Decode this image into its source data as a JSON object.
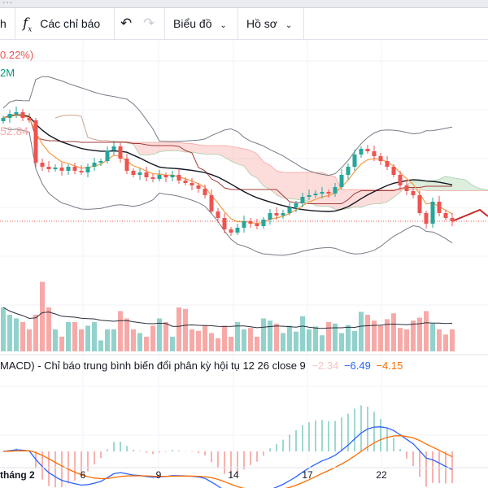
{
  "window_title": "…",
  "toolbar": {
    "partial_label": "h",
    "indicators_label": "Các chỉ báo",
    "chart_label": "Biểu đồ",
    "profile_label": "Hồ sơ"
  },
  "legend": {
    "change_text": "0.22%)",
    "volume_text": "2M",
    "ma_value": "52.84"
  },
  "macd_legend": {
    "title": "MACD) - Chỉ báo trung bình biến đổi phân kỳ hội tụ 12 26 close 9",
    "histogram": "−2.34",
    "macd": "−6.49",
    "signal": "−4.15"
  },
  "colors": {
    "up": "#26a69a",
    "down": "#ef5350",
    "macd": "#2962ff",
    "signal": "#ff6d00"
  },
  "chart_data": {
    "type": "candlestick",
    "x_tick_labels": [
      "tháng 2",
      "6",
      "9",
      "14",
      "17",
      "22"
    ],
    "closes": [
      58.75,
      59,
      59.1,
      58.75,
      58.6,
      56,
      55.75,
      55.6,
      55.7,
      55.5,
      55.75,
      55.5,
      55.4,
      55.75,
      56,
      56.1,
      56.75,
      57,
      56.25,
      55.5,
      55.25,
      55.4,
      55.1,
      55,
      55.25,
      55.1,
      55.25,
      54.9,
      54.75,
      54.6,
      54.4,
      54,
      53,
      52.6,
      51.9,
      51.7,
      52,
      52.4,
      52.25,
      52.1,
      52.5,
      52.9,
      52.75,
      52.9,
      53.25,
      53.5,
      53.9,
      54,
      54.1,
      54.2,
      54.1,
      54.5,
      55.25,
      55.75,
      56.5,
      56.85,
      56.7,
      56.4,
      56.1,
      55.75,
      55.25,
      54.6,
      54.25,
      54,
      52.9,
      52.25,
      53.6,
      52.9,
      52.6,
      52.4
    ],
    "volumes": [
      6,
      5,
      4.5,
      4,
      3,
      5,
      9.5,
      6,
      3,
      2,
      4,
      4,
      3,
      3.5,
      4,
      1.5,
      3,
      3,
      5.5,
      4.5,
      3,
      2.5,
      2,
      3.5,
      4.5,
      4,
      2,
      6,
      5.8,
      3,
      2.8,
      3.5,
      2.5,
      1.8,
      3.5,
      2,
      4,
      3,
      3.2,
      2,
      4.5,
      4.2,
      3.8,
      2.5,
      3.5,
      2.7,
      4.8,
      3,
      3.4,
      2.2,
      4,
      3.8,
      2.5,
      3.6,
      2.8,
      5.4,
      5,
      4.2,
      3.5,
      4.4,
      5.2,
      3.2,
      3,
      4.2,
      4.6,
      5.5,
      3.8,
      3,
      2.3,
      3
    ],
    "price_ylim": [
      48.5,
      63.5
    ]
  }
}
